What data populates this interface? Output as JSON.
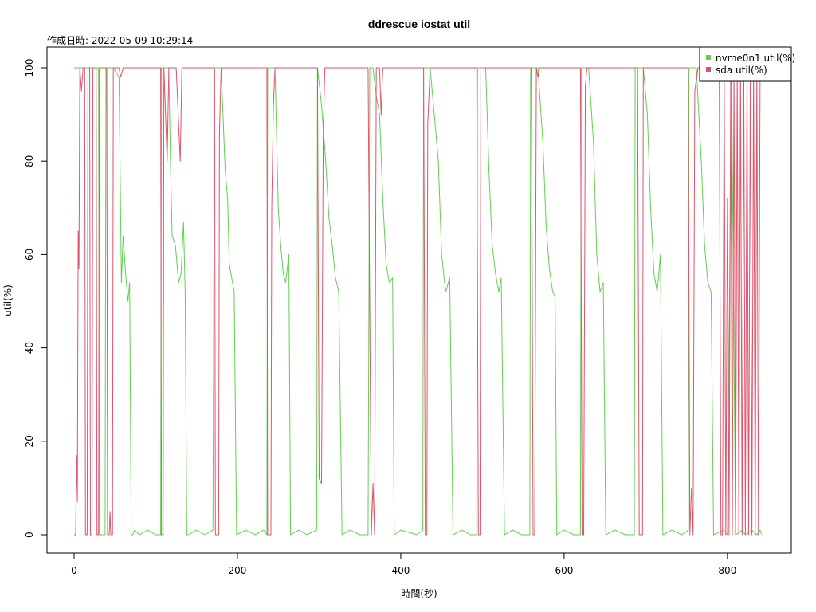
{
  "chart_data": {
    "type": "line",
    "title": "ddrescue iostat util",
    "subtitle": "作成日時: 2022-05-09 10:29:14",
    "xlabel": "時間(秒)",
    "ylabel": "util(%)",
    "xlim": [
      0,
      845
    ],
    "ylim": [
      0,
      100
    ],
    "x_ticks": [
      0,
      200,
      400,
      600,
      800
    ],
    "y_ticks": [
      0,
      20,
      40,
      60,
      80,
      100
    ],
    "x_tick_labels": [
      "0",
      "200",
      "400",
      "600",
      "800"
    ],
    "y_tick_labels": [
      "0",
      "20",
      "40",
      "60",
      "80",
      "100"
    ],
    "grid": false,
    "legend_position": "top-right",
    "legend": [
      {
        "label": "nvme0n1 util(%)",
        "color": "#61D04F"
      },
      {
        "label": "sda util(%)",
        "color": "#DF536B"
      }
    ],
    "series": [
      {
        "name": "nvme0n1 util(%)",
        "color": "#61D04F",
        "points": [
          [
            0,
            100
          ],
          [
            30,
            100
          ],
          [
            31,
            0
          ],
          [
            38,
            0
          ],
          [
            39,
            100
          ],
          [
            48,
            100
          ],
          [
            55,
            98
          ],
          [
            58,
            54
          ],
          [
            60,
            64
          ],
          [
            63,
            56
          ],
          [
            66,
            50
          ],
          [
            68,
            54
          ],
          [
            70,
            0
          ],
          [
            72,
            0
          ],
          [
            74,
            1
          ],
          [
            80,
            0
          ],
          [
            90,
            1
          ],
          [
            100,
            0
          ],
          [
            106,
            0
          ],
          [
            107,
            100
          ],
          [
            116,
            100
          ],
          [
            118,
            80
          ],
          [
            120,
            64
          ],
          [
            124,
            62
          ],
          [
            128,
            54
          ],
          [
            131,
            56
          ],
          [
            134,
            67
          ],
          [
            136,
            52
          ],
          [
            138,
            0
          ],
          [
            140,
            0
          ],
          [
            150,
            1
          ],
          [
            160,
            0
          ],
          [
            170,
            1
          ],
          [
            172,
            100
          ],
          [
            180,
            100
          ],
          [
            185,
            78
          ],
          [
            188,
            72
          ],
          [
            190,
            58
          ],
          [
            193,
            55
          ],
          [
            196,
            52
          ],
          [
            199,
            0
          ],
          [
            210,
            1
          ],
          [
            222,
            0
          ],
          [
            232,
            1
          ],
          [
            236,
            0
          ],
          [
            237,
            100
          ],
          [
            246,
            100
          ],
          [
            250,
            70
          ],
          [
            253,
            62
          ],
          [
            256,
            56
          ],
          [
            259,
            54
          ],
          [
            263,
            60
          ],
          [
            265,
            0
          ],
          [
            275,
            1
          ],
          [
            285,
            0
          ],
          [
            297,
            1
          ],
          [
            298,
            100
          ],
          [
            303,
            92
          ],
          [
            308,
            80
          ],
          [
            312,
            68
          ],
          [
            316,
            62
          ],
          [
            320,
            55
          ],
          [
            324,
            52
          ],
          [
            328,
            0
          ],
          [
            338,
            1
          ],
          [
            350,
            0
          ],
          [
            360,
            0
          ],
          [
            362,
            100
          ],
          [
            366,
            100
          ],
          [
            370,
            94
          ],
          [
            374,
            90
          ],
          [
            378,
            72
          ],
          [
            382,
            58
          ],
          [
            386,
            54
          ],
          [
            390,
            55
          ],
          [
            392,
            0
          ],
          [
            400,
            1
          ],
          [
            420,
            0
          ],
          [
            427,
            1
          ],
          [
            428,
            100
          ],
          [
            436,
            100
          ],
          [
            442,
            88
          ],
          [
            446,
            80
          ],
          [
            450,
            60
          ],
          [
            455,
            52
          ],
          [
            460,
            55
          ],
          [
            464,
            0
          ],
          [
            475,
            1
          ],
          [
            485,
            0
          ],
          [
            493,
            0
          ],
          [
            494,
            100
          ],
          [
            504,
            100
          ],
          [
            508,
            78
          ],
          [
            512,
            62
          ],
          [
            516,
            56
          ],
          [
            520,
            52
          ],
          [
            523,
            55
          ],
          [
            527,
            0
          ],
          [
            537,
            1
          ],
          [
            548,
            0
          ],
          [
            558,
            0
          ],
          [
            559,
            100
          ],
          [
            568,
            100
          ],
          [
            574,
            84
          ],
          [
            578,
            66
          ],
          [
            582,
            57
          ],
          [
            586,
            52
          ],
          [
            589,
            51
          ],
          [
            591,
            0
          ],
          [
            600,
            1
          ],
          [
            612,
            0
          ],
          [
            620,
            0
          ],
          [
            621,
            100
          ],
          [
            630,
            100
          ],
          [
            636,
            84
          ],
          [
            640,
            60
          ],
          [
            644,
            52
          ],
          [
            648,
            54
          ],
          [
            651,
            0
          ],
          [
            662,
            1
          ],
          [
            675,
            0
          ],
          [
            686,
            0
          ],
          [
            687,
            100
          ],
          [
            697,
            100
          ],
          [
            702,
            90
          ],
          [
            706,
            70
          ],
          [
            710,
            56
          ],
          [
            714,
            52
          ],
          [
            718,
            60
          ],
          [
            721,
            0
          ],
          [
            732,
            1
          ],
          [
            744,
            0
          ],
          [
            752,
            1
          ],
          [
            753,
            100
          ],
          [
            762,
            100
          ],
          [
            768,
            80
          ],
          [
            772,
            62
          ],
          [
            776,
            54
          ],
          [
            780,
            52
          ],
          [
            783,
            0
          ],
          [
            795,
            1
          ],
          [
            800,
            0
          ],
          [
            805,
            100
          ],
          [
            810,
            0
          ],
          [
            818,
            1
          ],
          [
            822,
            0
          ],
          [
            830,
            1
          ],
          [
            836,
            0
          ],
          [
            840,
            1
          ],
          [
            842,
            0
          ]
        ]
      },
      {
        "name": "sda util(%)",
        "color": "#DF536B",
        "points": [
          [
            0,
            0
          ],
          [
            2,
            0
          ],
          [
            3,
            17
          ],
          [
            4,
            7
          ],
          [
            5,
            65
          ],
          [
            6,
            57
          ],
          [
            7,
            100
          ],
          [
            9,
            95
          ],
          [
            11,
            100
          ],
          [
            13,
            100
          ],
          [
            14,
            0
          ],
          [
            16,
            0
          ],
          [
            17,
            100
          ],
          [
            19,
            100
          ],
          [
            20,
            0
          ],
          [
            22,
            0
          ],
          [
            23,
            100
          ],
          [
            27,
            100
          ],
          [
            28,
            0
          ],
          [
            30,
            0
          ],
          [
            31,
            100
          ],
          [
            40,
            100
          ],
          [
            41,
            0
          ],
          [
            43,
            0
          ],
          [
            44,
            5
          ],
          [
            45,
            0
          ],
          [
            47,
            0
          ],
          [
            48,
            100
          ],
          [
            55,
            100
          ],
          [
            57,
            98
          ],
          [
            60,
            100
          ],
          [
            70,
            100
          ],
          [
            80,
            100
          ],
          [
            90,
            100
          ],
          [
            100,
            100
          ],
          [
            106,
            100
          ],
          [
            107,
            0
          ],
          [
            109,
            0
          ],
          [
            110,
            100
          ],
          [
            114,
            80
          ],
          [
            116,
            100
          ],
          [
            120,
            100
          ],
          [
            125,
            100
          ],
          [
            130,
            80
          ],
          [
            132,
            100
          ],
          [
            150,
            100
          ],
          [
            168,
            100
          ],
          [
            172,
            100
          ],
          [
            173,
            0
          ],
          [
            177,
            0
          ],
          [
            178,
            86
          ],
          [
            180,
            100
          ],
          [
            200,
            100
          ],
          [
            220,
            100
          ],
          [
            236,
            100
          ],
          [
            237,
            0
          ],
          [
            241,
            0
          ],
          [
            242,
            70
          ],
          [
            244,
            92
          ],
          [
            246,
            100
          ],
          [
            270,
            100
          ],
          [
            296,
            100
          ],
          [
            298,
            100
          ],
          [
            300,
            12
          ],
          [
            303,
            11
          ],
          [
            305,
            85
          ],
          [
            307,
            100
          ],
          [
            330,
            100
          ],
          [
            360,
            100
          ],
          [
            364,
            0
          ],
          [
            366,
            11
          ],
          [
            368,
            0
          ],
          [
            370,
            100
          ],
          [
            374,
            100
          ],
          [
            376,
            90
          ],
          [
            378,
            100
          ],
          [
            400,
            100
          ],
          [
            428,
            100
          ],
          [
            430,
            0
          ],
          [
            432,
            0
          ],
          [
            433,
            88
          ],
          [
            436,
            100
          ],
          [
            460,
            100
          ],
          [
            493,
            100
          ],
          [
            495,
            0
          ],
          [
            497,
            0
          ],
          [
            498,
            100
          ],
          [
            500,
            100
          ],
          [
            520,
            100
          ],
          [
            540,
            100
          ],
          [
            560,
            100
          ],
          [
            562,
            0
          ],
          [
            564,
            0
          ],
          [
            566,
            100
          ],
          [
            568,
            98
          ],
          [
            570,
            100
          ],
          [
            600,
            100
          ],
          [
            620,
            100
          ],
          [
            622,
            0
          ],
          [
            624,
            0
          ],
          [
            626,
            96
          ],
          [
            628,
            100
          ],
          [
            650,
            100
          ],
          [
            670,
            100
          ],
          [
            690,
            100
          ],
          [
            692,
            0
          ],
          [
            696,
            0
          ],
          [
            697,
            100
          ],
          [
            720,
            100
          ],
          [
            752,
            100
          ],
          [
            754,
            0
          ],
          [
            756,
            10
          ],
          [
            758,
            0
          ],
          [
            760,
            95
          ],
          [
            764,
            100
          ],
          [
            776,
            100
          ],
          [
            780,
            100
          ],
          [
            790,
            100
          ],
          [
            792,
            0
          ],
          [
            794,
            0
          ],
          [
            796,
            100
          ],
          [
            798,
            0
          ],
          [
            800,
            72
          ],
          [
            802,
            0
          ],
          [
            804,
            100
          ],
          [
            806,
            0
          ],
          [
            808,
            100
          ],
          [
            810,
            0
          ],
          [
            812,
            100
          ],
          [
            814,
            0
          ],
          [
            816,
            100
          ],
          [
            818,
            0
          ],
          [
            820,
            100
          ],
          [
            822,
            0
          ],
          [
            824,
            100
          ],
          [
            826,
            0
          ],
          [
            828,
            100
          ],
          [
            830,
            0
          ],
          [
            832,
            100
          ],
          [
            834,
            0
          ],
          [
            836,
            100
          ],
          [
            838,
            0
          ],
          [
            840,
            100
          ],
          [
            842,
            100
          ]
        ]
      }
    ]
  }
}
